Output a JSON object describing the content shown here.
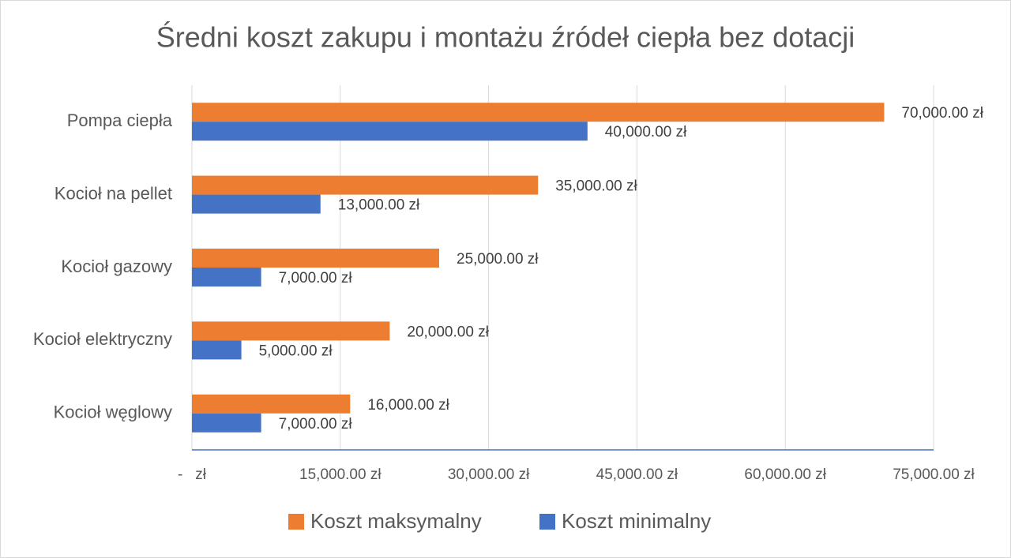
{
  "chart_data": {
    "type": "hbar",
    "title": "Średni koszt zakupu i montażu źródeł ciepła bez dotacji",
    "categories": [
      "Pompa ciepła",
      "Kocioł na pellet",
      "Kocioł gazowy",
      "Kocioł elektryczny",
      "Kocioł węglowy"
    ],
    "series": [
      {
        "name": "Koszt maksymalny",
        "color": "#ed7d31",
        "values": [
          70000,
          35000,
          25000,
          20000,
          16000
        ],
        "value_labels": [
          "70,000.00 zł",
          "35,000.00 zł",
          "25,000.00 zł",
          "20,000.00 zł",
          "16,000.00 zł"
        ]
      },
      {
        "name": "Koszt minimalny",
        "color": "#4472c4",
        "values": [
          40000,
          13000,
          7000,
          5000,
          7000
        ],
        "value_labels": [
          "40,000.00 zł",
          "13,000.00 zł",
          "7,000.00 zł",
          "5,000.00 zł",
          "7,000.00 zł"
        ]
      }
    ],
    "xlim": [
      0,
      75000
    ],
    "xticks": [
      {
        "value": 0,
        "label": "-   zł"
      },
      {
        "value": 15000,
        "label": "15,000.00 zł"
      },
      {
        "value": 30000,
        "label": "30,000.00 zł"
      },
      {
        "value": 45000,
        "label": "45,000.00 zł"
      },
      {
        "value": 60000,
        "label": "60,000.00 zł"
      },
      {
        "value": 75000,
        "label": "75,000.00 zł"
      }
    ],
    "grid": true,
    "legend": "bottom"
  }
}
